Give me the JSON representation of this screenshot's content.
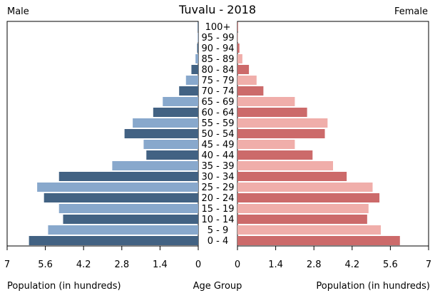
{
  "chart_data": {
    "type": "bar",
    "title": "Tuvalu - 2018",
    "left_label": "Male",
    "right_label": "Female",
    "xlabel_left": "Population (in hundreds)",
    "xlabel_center": "Age Group",
    "xlabel_right": "Population (in hundreds)",
    "categories": [
      "0 - 4",
      "5 - 9",
      "10 - 14",
      "15 - 19",
      "20 - 24",
      "25 - 29",
      "30 - 34",
      "35 - 39",
      "40 - 44",
      "45 - 49",
      "50 - 54",
      "55 - 59",
      "60 - 64",
      "65 - 69",
      "70 - 74",
      "75 - 79",
      "80 - 84",
      "85 - 89",
      "90 - 94",
      "95 - 99",
      "100+"
    ],
    "x_ticks": [
      "7",
      "5.6",
      "4.2",
      "2.8",
      "1.4",
      "0"
    ],
    "xlim": [
      0,
      7
    ],
    "series": [
      {
        "name": "Male",
        "values": [
          6.2,
          5.5,
          4.95,
          5.1,
          5.65,
          5.9,
          5.1,
          3.15,
          1.9,
          2.0,
          2.7,
          2.4,
          1.65,
          1.3,
          0.7,
          0.45,
          0.25,
          0.1,
          0.04,
          0.02,
          0.01
        ],
        "colors": [
          "#426283",
          "#88a8cc"
        ]
      },
      {
        "name": "Female",
        "values": [
          5.95,
          5.25,
          4.75,
          4.8,
          5.2,
          4.95,
          4.0,
          3.5,
          2.75,
          2.1,
          3.2,
          3.3,
          2.55,
          2.1,
          0.95,
          0.7,
          0.42,
          0.18,
          0.07,
          0.02,
          0.01
        ],
        "colors": [
          "#cc6a6a",
          "#f0aeaa"
        ]
      }
    ]
  }
}
